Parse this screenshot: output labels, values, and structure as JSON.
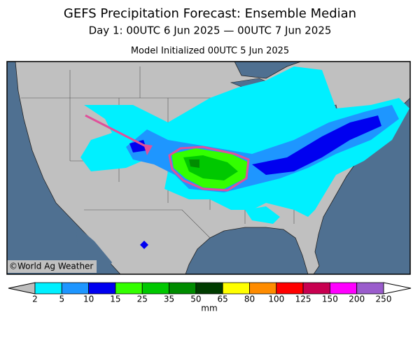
{
  "header": {
    "title": "GEFS Precipitation Forecast: Ensemble Median",
    "subtitle": "Day 1: 00UTC 6 Jun 2025 — 00UTC 7 Jun 2025",
    "initialized": "Model Initialized 00UTC 5 Jun 2025"
  },
  "map": {
    "credit": "©World Ag Weather"
  },
  "colorbar": {
    "levels": [
      2,
      5,
      10,
      15,
      25,
      35,
      50,
      65,
      80,
      100,
      125,
      150,
      200,
      250
    ],
    "colors": [
      "#00f0ff",
      "#1e96ff",
      "#0000f0",
      "#33ff00",
      "#00c800",
      "#008c00",
      "#003c00",
      "#ffff00",
      "#ff8c00",
      "#ff0000",
      "#c80050",
      "#ff00ff",
      "#9a5ccc"
    ],
    "under_color": "#bebebe",
    "over_color": "#ffffff",
    "unit": "mm"
  }
}
